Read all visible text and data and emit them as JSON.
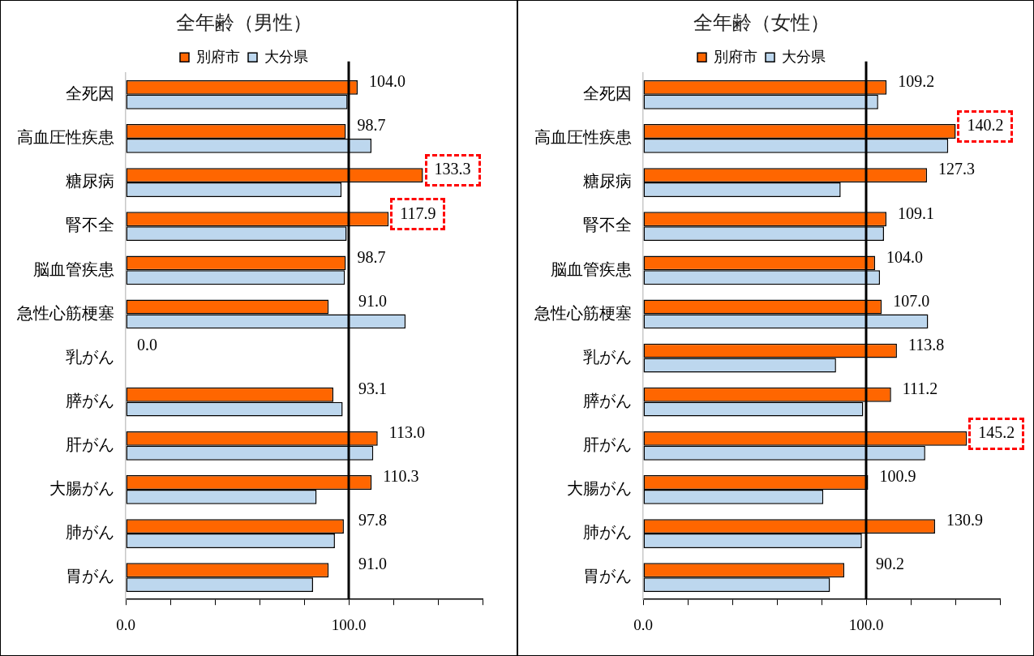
{
  "chart_data": [
    {
      "type": "bar",
      "orientation": "horizontal",
      "title": "全年齢（男性）",
      "legend": "top",
      "categories": [
        "全死因",
        "高血圧性疾患",
        "糖尿病",
        "腎不全",
        "脳血管疾患",
        "急性心筋梗塞",
        "乳がん",
        "膵がん",
        "肝がん",
        "大腸がん",
        "肺がん",
        "胃がん"
      ],
      "series": [
        {
          "name": "別府市",
          "color": "#ff6600",
          "values": [
            104.0,
            98.7,
            133.3,
            117.9,
            98.7,
            91.0,
            0.0,
            93.1,
            113.0,
            110.3,
            97.8,
            91.0
          ],
          "value_labels": [
            "104.0",
            "98.7",
            "133.3",
            "117.9",
            "98.7",
            "91.0",
            "0.0",
            "93.1",
            "113.0",
            "110.3",
            "97.8",
            "91.0"
          ]
        },
        {
          "name": "大分県",
          "color": "#bdd7ee",
          "values": [
            99.5,
            110.2,
            96.8,
            99.1,
            98.3,
            125.5,
            null,
            97.3,
            111.0,
            85.6,
            93.8,
            84.0
          ]
        }
      ],
      "xlim": [
        0,
        160
      ],
      "xticks": [
        {
          "value": 0,
          "label": "0.0"
        },
        {
          "value": 20,
          "label": null
        },
        {
          "value": 40,
          "label": null
        },
        {
          "value": 60,
          "label": null
        },
        {
          "value": 80,
          "label": null
        },
        {
          "value": 100,
          "label": "100.0"
        },
        {
          "value": 120,
          "label": null
        },
        {
          "value": 140,
          "label": null
        },
        {
          "value": 160,
          "label": null
        }
      ],
      "ref_lines": [
        {
          "axis": "x",
          "value": 100,
          "color": "#000000"
        }
      ]
    },
    {
      "type": "bar",
      "orientation": "horizontal",
      "title": "全年齢（女性）",
      "legend": "top",
      "categories": [
        "全死因",
        "高血圧性疾患",
        "糖尿病",
        "腎不全",
        "脳血管疾患",
        "急性心筋梗塞",
        "乳がん",
        "膵がん",
        "肝がん",
        "大腸がん",
        "肺がん",
        "胃がん"
      ],
      "series": [
        {
          "name": "別府市",
          "color": "#ff6600",
          "values": [
            109.2,
            140.2,
            127.3,
            109.1,
            104.0,
            107.0,
            113.8,
            111.2,
            145.2,
            100.9,
            130.9,
            90.2
          ],
          "value_labels": [
            "109.2",
            "140.2",
            "127.3",
            "109.1",
            "104.0",
            "107.0",
            "113.8",
            "111.2",
            "145.2",
            "100.9",
            "130.9",
            "90.2"
          ]
        },
        {
          "name": "大分県",
          "color": "#bdd7ee",
          "values": [
            105.4,
            136.8,
            88.6,
            108.0,
            106.2,
            127.8,
            86.5,
            98.7,
            126.5,
            80.8,
            98.1,
            83.8
          ]
        }
      ],
      "xlim": [
        0,
        160
      ],
      "xticks": [
        {
          "value": 0,
          "label": "0.0"
        },
        {
          "value": 20,
          "label": null
        },
        {
          "value": 40,
          "label": null
        },
        {
          "value": 60,
          "label": null
        },
        {
          "value": 80,
          "label": null
        },
        {
          "value": 100,
          "label": "100.0"
        },
        {
          "value": 120,
          "label": null
        },
        {
          "value": 140,
          "label": null
        },
        {
          "value": 160,
          "label": null
        }
      ],
      "ref_lines": [
        {
          "axis": "x",
          "value": 100,
          "color": "#000000"
        }
      ]
    }
  ]
}
